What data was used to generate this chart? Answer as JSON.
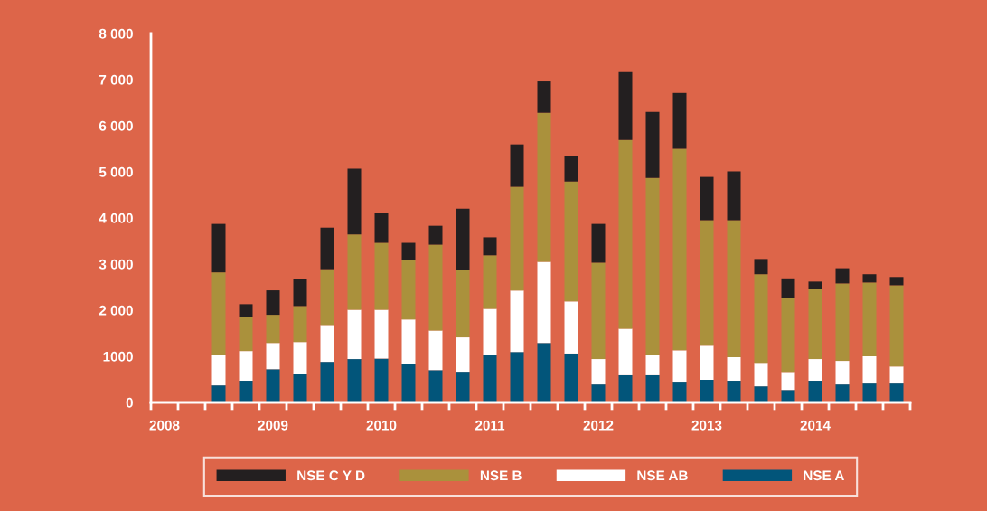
{
  "chart_data": {
    "type": "bar",
    "stacked": true,
    "categories": [
      "2008",
      null,
      null,
      null,
      "2009",
      null,
      null,
      null,
      "2010",
      null,
      null,
      null,
      "2011",
      null,
      null,
      null,
      "2012",
      null,
      null,
      null,
      "2013",
      null,
      null,
      null,
      "2014",
      null,
      null,
      null
    ],
    "series": [
      {
        "name": "NSE A",
        "color": "#02557a",
        "values": [
          null,
          null,
          370,
          470,
          720,
          610,
          880,
          940,
          950,
          840,
          700,
          665,
          1020,
          1095,
          1290,
          1060,
          390,
          590,
          590,
          450,
          490,
          470,
          350,
          270,
          470,
          390,
          410,
          410
        ]
      },
      {
        "name": "NSE AB",
        "color": "#ffffff",
        "values": [
          null,
          null,
          670,
          645,
          570,
          700,
          800,
          1070,
          1060,
          960,
          860,
          745,
          1010,
          1330,
          1760,
          1130,
          550,
          1010,
          430,
          680,
          740,
          510,
          510,
          390,
          470,
          510,
          590,
          370
        ]
      },
      {
        "name": "NSE B",
        "color": "#aa913c",
        "values": [
          null,
          null,
          1780,
          745,
          610,
          780,
          1210,
          1630,
          1450,
          1290,
          1860,
          1460,
          1160,
          2250,
          3230,
          2600,
          2090,
          4090,
          3850,
          4370,
          2720,
          2970,
          1920,
          1600,
          1520,
          1680,
          1600,
          1760
        ]
      },
      {
        "name": "NSE C Y D",
        "color": "#231f20",
        "values": [
          null,
          null,
          1050,
          270,
          530,
          590,
          900,
          1430,
          650,
          370,
          410,
          1330,
          390,
          920,
          680,
          550,
          840,
          1470,
          1430,
          1210,
          940,
          1060,
          330,
          430,
          160,
          330,
          180,
          180
        ]
      }
    ],
    "ylim": [
      0,
      8000
    ],
    "yticks": [
      0,
      {
        "value": 1000,
        "label": "1000"
      },
      {
        "value": 2000,
        "label": "2 000"
      },
      {
        "value": 3000,
        "label": "3 000"
      },
      {
        "value": 4000,
        "label": "4 000"
      },
      {
        "value": 5000,
        "label": "5 000"
      },
      {
        "value": 6000,
        "label": "6 000"
      },
      {
        "value": 7000,
        "label": "7 000"
      },
      {
        "value": 8000,
        "label": "8 000"
      }
    ],
    "grid": false,
    "legend": "bottom"
  }
}
